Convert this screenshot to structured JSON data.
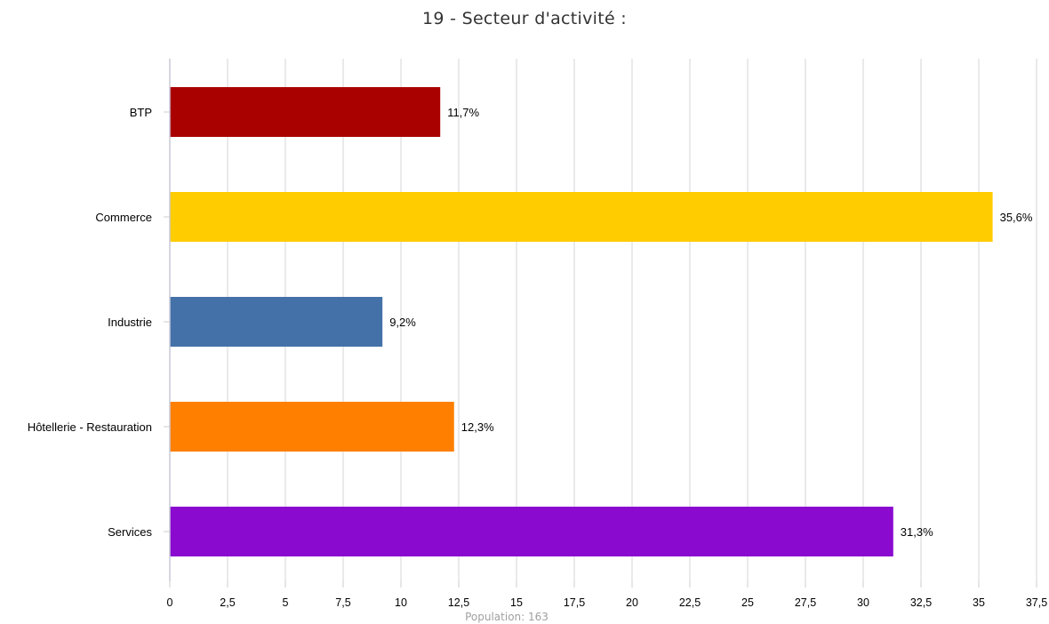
{
  "title": "19 - Secteur d'activité :",
  "footer": "Population: 163",
  "chart_data": {
    "type": "bar",
    "orientation": "horizontal",
    "title": "19 - Secteur d'activité :",
    "xlabel": "",
    "ylabel": "",
    "xlim": [
      0,
      37.5
    ],
    "grid": true,
    "categories": [
      "BTP",
      "Commerce",
      "Industrie",
      "Hôtellerie - Restauration",
      "Services"
    ],
    "values": [
      11.7,
      35.6,
      9.2,
      12.3,
      31.3
    ],
    "value_labels": [
      "11,7%",
      "35,6%",
      "9,2%",
      "12,3%",
      "31,3%"
    ],
    "colors": [
      "#a90000",
      "#ffcc00",
      "#4472a8",
      "#ff8000",
      "#8a0acf"
    ],
    "x_ticks": [
      0,
      2.5,
      5,
      7.5,
      10,
      12.5,
      15,
      17.5,
      20,
      22.5,
      25,
      27.5,
      30,
      32.5,
      35,
      37.5
    ],
    "x_tick_labels": [
      "0",
      "2,5",
      "5",
      "7,5",
      "10",
      "12,5",
      "15",
      "17,5",
      "20",
      "22,5",
      "25",
      "27,5",
      "30",
      "32,5",
      "35",
      "37,5"
    ]
  }
}
